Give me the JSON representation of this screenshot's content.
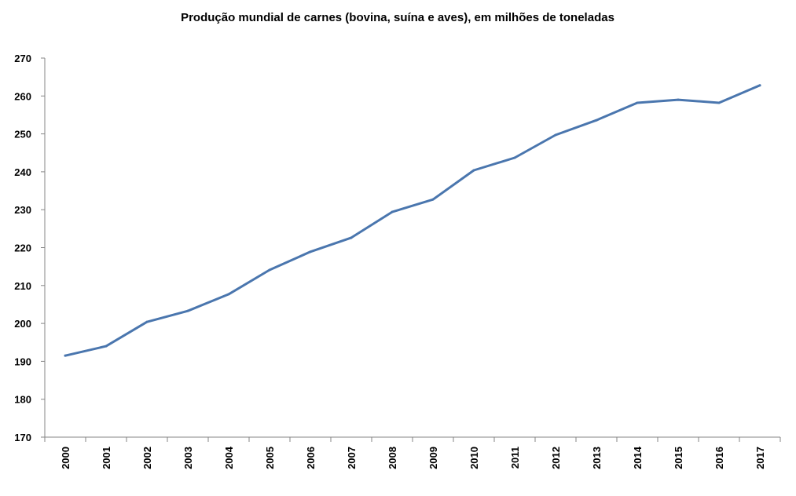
{
  "chart_data": {
    "type": "line",
    "title": "Produção mundial de carnes (bovina, suína e aves), em milhões de toneladas",
    "xlabel": "",
    "ylabel": "",
    "categories": [
      "2000",
      "2001",
      "2002",
      "2003",
      "2004",
      "2005",
      "2006",
      "2007",
      "2008",
      "2009",
      "2010",
      "2011",
      "2012",
      "2013",
      "2014",
      "2015",
      "2016",
      "2017"
    ],
    "series": [
      {
        "name": "Produção mundial de carnes",
        "color": "#4a76ae",
        "values": [
          191.5,
          194.0,
          200.4,
          203.3,
          207.7,
          214.1,
          218.9,
          222.6,
          229.4,
          232.7,
          240.4,
          243.7,
          249.7,
          253.6,
          258.2,
          259.0,
          258.2,
          262.8
        ]
      }
    ],
    "ylim": [
      170,
      270
    ],
    "yticks": [
      "170",
      "180",
      "190",
      "200",
      "210",
      "220",
      "230",
      "240",
      "250",
      "260",
      "270"
    ],
    "grid": false,
    "legend": "none"
  }
}
